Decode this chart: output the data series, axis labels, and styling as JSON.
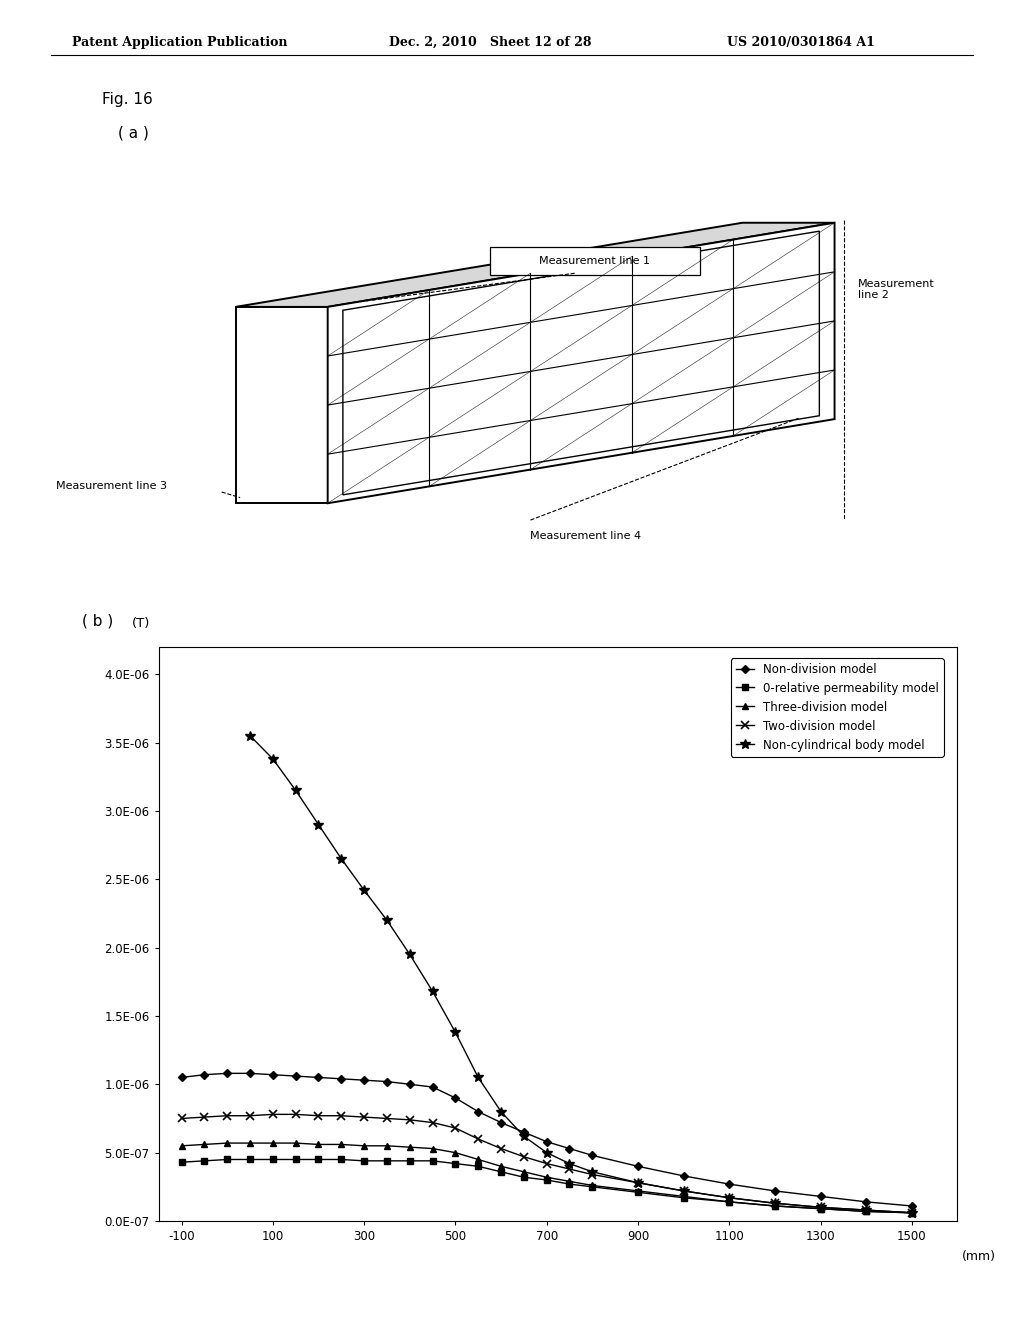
{
  "header_left": "Patent Application Publication",
  "header_mid": "Dec. 2, 2010   Sheet 12 of 28",
  "header_right": "US 2010/0301864 A1",
  "fig_label": "Fig. 16",
  "subfig_a_label": "( a )",
  "subfig_b_label": "( b )",
  "meas_line1_label": "Measurement line 1",
  "meas_line2_label": "Measurement\nline 2",
  "meas_line3_label": "Measurement line 3",
  "meas_line4_label": "Measurement line 4",
  "ylabel_unit": "(T)",
  "xlabel_unit": "(mm)",
  "ytick_vals": [
    0,
    5e-07,
    1e-06,
    1.5e-06,
    2e-06,
    2.5e-06,
    3e-06,
    3.5e-06,
    4e-06
  ],
  "ytick_labels": [
    "0.0E-07",
    "5.0E-07",
    "1.0E-06",
    "1.5E-06",
    "2.0E-06",
    "2.5E-06",
    "3.0E-06",
    "3.5E-06",
    "4.0E-06"
  ],
  "xticks": [
    -100,
    100,
    300,
    500,
    700,
    900,
    1100,
    1300,
    1500
  ],
  "ylim": [
    0,
    4.2e-06
  ],
  "xlim": [
    -150,
    1600
  ],
  "legend_labels": [
    "Non-division model",
    "0-relative permeability model",
    "Three-division model",
    "Two-division model",
    "Non-cylindrical body model"
  ],
  "series_non_division": {
    "x": [
      -100,
      -50,
      0,
      50,
      100,
      150,
      200,
      250,
      300,
      350,
      400,
      450,
      500,
      550,
      600,
      650,
      700,
      750,
      800,
      900,
      1000,
      1100,
      1200,
      1300,
      1400,
      1500
    ],
    "y": [
      1.05e-06,
      1.07e-06,
      1.08e-06,
      1.08e-06,
      1.07e-06,
      1.06e-06,
      1.05e-06,
      1.04e-06,
      1.03e-06,
      1.02e-06,
      1e-06,
      9.8e-07,
      9e-07,
      8e-07,
      7.2e-07,
      6.5e-07,
      5.8e-07,
      5.3e-07,
      4.8e-07,
      4e-07,
      3.3e-07,
      2.7e-07,
      2.2e-07,
      1.8e-07,
      1.4e-07,
      1.1e-07
    ]
  },
  "series_0_relative": {
    "x": [
      -100,
      -50,
      0,
      50,
      100,
      150,
      200,
      250,
      300,
      350,
      400,
      450,
      500,
      550,
      600,
      650,
      700,
      750,
      800,
      900,
      1000,
      1100,
      1200,
      1300,
      1400,
      1500
    ],
    "y": [
      4.3e-07,
      4.4e-07,
      4.5e-07,
      4.5e-07,
      4.5e-07,
      4.5e-07,
      4.5e-07,
      4.5e-07,
      4.4e-07,
      4.4e-07,
      4.4e-07,
      4.4e-07,
      4.2e-07,
      4e-07,
      3.6e-07,
      3.2e-07,
      3e-07,
      2.7e-07,
      2.5e-07,
      2.1e-07,
      1.7e-07,
      1.4e-07,
      1.1e-07,
      9e-08,
      7e-08,
      6e-08
    ]
  },
  "series_three_division": {
    "x": [
      -100,
      -50,
      0,
      50,
      100,
      150,
      200,
      250,
      300,
      350,
      400,
      450,
      500,
      550,
      600,
      650,
      700,
      750,
      800,
      900,
      1000,
      1100,
      1200,
      1300,
      1400,
      1500
    ],
    "y": [
      5.5e-07,
      5.6e-07,
      5.7e-07,
      5.7e-07,
      5.7e-07,
      5.7e-07,
      5.6e-07,
      5.6e-07,
      5.5e-07,
      5.5e-07,
      5.4e-07,
      5.3e-07,
      5e-07,
      4.5e-07,
      4e-07,
      3.6e-07,
      3.2e-07,
      2.9e-07,
      2.6e-07,
      2.2e-07,
      1.8e-07,
      1.4e-07,
      1.1e-07,
      9e-08,
      7e-08,
      6e-08
    ]
  },
  "series_two_division": {
    "x": [
      -100,
      -50,
      0,
      50,
      100,
      150,
      200,
      250,
      300,
      350,
      400,
      450,
      500,
      550,
      600,
      650,
      700,
      750,
      800,
      900,
      1000,
      1100,
      1200,
      1300,
      1400,
      1500
    ],
    "y": [
      7.5e-07,
      7.6e-07,
      7.7e-07,
      7.7e-07,
      7.8e-07,
      7.8e-07,
      7.7e-07,
      7.7e-07,
      7.6e-07,
      7.5e-07,
      7.4e-07,
      7.2e-07,
      6.8e-07,
      6e-07,
      5.3e-07,
      4.7e-07,
      4.2e-07,
      3.8e-07,
      3.4e-07,
      2.8e-07,
      2.2e-07,
      1.7e-07,
      1.3e-07,
      1e-07,
      8e-08,
      6e-08
    ]
  },
  "series_non_cylindrical": {
    "x": [
      50,
      100,
      150,
      200,
      250,
      300,
      350,
      400,
      450,
      500,
      550,
      600,
      650,
      700,
      750,
      800,
      900,
      1000,
      1100,
      1200,
      1300,
      1400,
      1500
    ],
    "y": [
      3.55e-06,
      3.38e-06,
      3.15e-06,
      2.9e-06,
      2.65e-06,
      2.42e-06,
      2.2e-06,
      1.95e-06,
      1.68e-06,
      1.38e-06,
      1.05e-06,
      8e-07,
      6.2e-07,
      5e-07,
      4.2e-07,
      3.6e-07,
      2.8e-07,
      2.2e-07,
      1.7e-07,
      1.3e-07,
      1e-07,
      8e-08,
      6e-08
    ]
  },
  "background_color": "#ffffff",
  "line_color": "#000000"
}
